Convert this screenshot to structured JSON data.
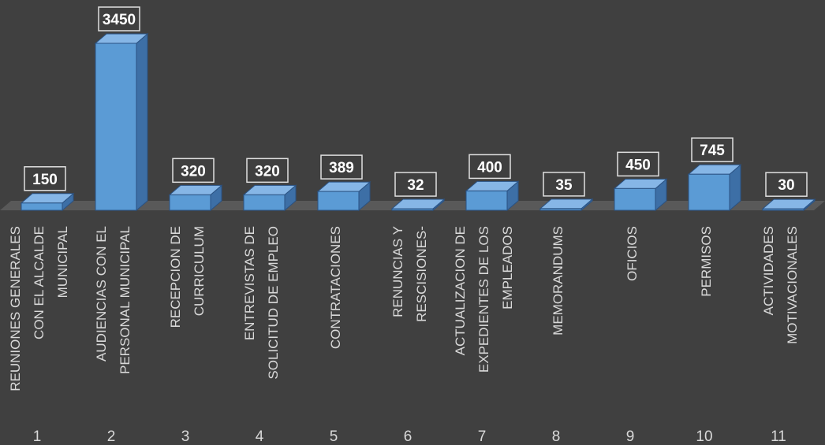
{
  "chart_data": {
    "type": "bar3d",
    "categories": [
      "1",
      "2",
      "3",
      "4",
      "5",
      "6",
      "7",
      "8",
      "9",
      "10",
      "11"
    ],
    "category_names": [
      [
        "REUNIONES GENERALES",
        "CON EL ALCALDE",
        "MUNICIPAL"
      ],
      [
        "AUDIENCIAS CON EL",
        "PERSONAL MUNICIPAL"
      ],
      [
        "RECEPCION DE",
        "CURRICULUM"
      ],
      [
        "ENTREVISTAS DE",
        "SOLICITUD DE EMPLEO"
      ],
      [
        "CONTRATACIONES"
      ],
      [
        "RENUNCIAS Y",
        "RESCISIONES-"
      ],
      [
        "ACTUALIZACION DE",
        "EXPEDIENTES DE LOS",
        "EMPLEADOS"
      ],
      [
        "MEMORANDUMS"
      ],
      [
        "OFICIOS"
      ],
      [
        "PERMISOS"
      ],
      [
        "ACTIVIDADES",
        "MOTIVACIONALES"
      ]
    ],
    "values": [
      150,
      3450,
      320,
      320,
      389,
      32,
      400,
      35,
      450,
      745,
      30
    ],
    "color": "#5b9bd5"
  }
}
